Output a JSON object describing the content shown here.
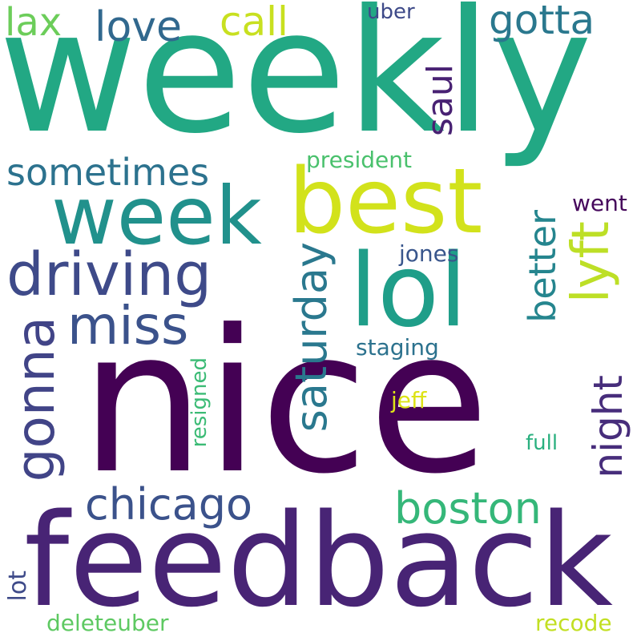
{
  "words": [
    {
      "key": "weekly",
      "text": "weekly",
      "color": "#22a884",
      "orientation": "horizontal"
    },
    {
      "key": "nice",
      "text": "nice",
      "color": "#440154",
      "orientation": "horizontal"
    },
    {
      "key": "feedback",
      "text": "feedback",
      "color": "#482475",
      "orientation": "horizontal"
    },
    {
      "key": "best",
      "text": "best",
      "color": "#d2e21b",
      "orientation": "horizontal"
    },
    {
      "key": "week",
      "text": "week",
      "color": "#21918c",
      "orientation": "horizontal"
    },
    {
      "key": "lol",
      "text": "lol",
      "color": "#1f9e89",
      "orientation": "horizontal"
    },
    {
      "key": "driving",
      "text": "driving",
      "color": "#3e4a89",
      "orientation": "horizontal"
    },
    {
      "key": "gonna",
      "text": "gonna",
      "color": "#414487",
      "orientation": "vertical"
    },
    {
      "key": "miss",
      "text": "miss",
      "color": "#3b528b",
      "orientation": "horizontal"
    },
    {
      "key": "lyft",
      "text": "lyft",
      "color": "#bddf26",
      "orientation": "vertical"
    },
    {
      "key": "saturday",
      "text": "saturday",
      "color": "#2a788e",
      "orientation": "vertical"
    },
    {
      "key": "chicago",
      "text": "chicago",
      "color": "#3b528b",
      "orientation": "horizontal"
    },
    {
      "key": "boston",
      "text": "boston",
      "color": "#35b779",
      "orientation": "horizontal"
    },
    {
      "key": "night",
      "text": "night",
      "color": "#472d7b",
      "orientation": "vertical"
    },
    {
      "key": "better",
      "text": "better",
      "color": "#25858e",
      "orientation": "vertical"
    },
    {
      "key": "sometimes",
      "text": "sometimes",
      "color": "#2c728e",
      "orientation": "horizontal"
    },
    {
      "key": "gotta",
      "text": "gotta",
      "color": "#2a788e",
      "orientation": "horizontal"
    },
    {
      "key": "love",
      "text": "love",
      "color": "#31688e",
      "orientation": "horizontal"
    },
    {
      "key": "call",
      "text": "call",
      "color": "#c8e020",
      "orientation": "horizontal"
    },
    {
      "key": "lax",
      "text": "lax",
      "color": "#6ccd5a",
      "orientation": "horizontal"
    },
    {
      "key": "saul",
      "text": "saul",
      "color": "#482173",
      "orientation": "vertical"
    },
    {
      "key": "uber",
      "text": "uber",
      "color": "#3e4a89",
      "orientation": "horizontal"
    },
    {
      "key": "president",
      "text": "president",
      "color": "#4ac16d",
      "orientation": "horizontal"
    },
    {
      "key": "jones",
      "text": "jones",
      "color": "#39568c",
      "orientation": "horizontal"
    },
    {
      "key": "went",
      "text": "went",
      "color": "#46085c",
      "orientation": "horizontal"
    },
    {
      "key": "staging",
      "text": "staging",
      "color": "#2c728e",
      "orientation": "horizontal"
    },
    {
      "key": "jeff",
      "text": "jeff",
      "color": "#dde318",
      "orientation": "horizontal"
    },
    {
      "key": "resigned",
      "text": "resigned",
      "color": "#3bbb75",
      "orientation": "vertical"
    },
    {
      "key": "full",
      "text": "full",
      "color": "#2ab07f",
      "orientation": "horizontal"
    },
    {
      "key": "lot",
      "text": "lot",
      "color": "#3e4a89",
      "orientation": "vertical"
    },
    {
      "key": "deleteuber",
      "text": "deleteuber",
      "color": "#5ec962",
      "orientation": "horizontal"
    },
    {
      "key": "recode",
      "text": "recode",
      "color": "#c2df23",
      "orientation": "horizontal"
    }
  ]
}
